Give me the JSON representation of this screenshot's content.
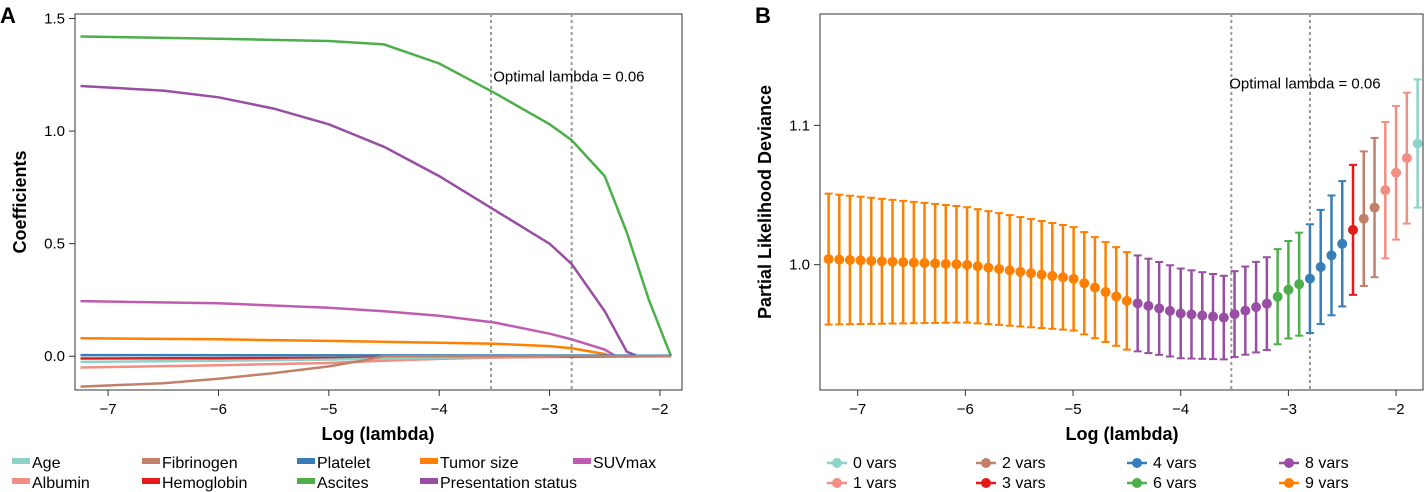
{
  "chart_data": [
    {
      "panel_label": "A",
      "type": "line",
      "title": "",
      "xlabel": "Log (lambda)",
      "ylabel": "Coefficients",
      "xlim": [
        -7.3,
        -1.8
      ],
      "ylim": [
        -0.15,
        1.52
      ],
      "xticks": [
        -7,
        -6,
        -5,
        -4,
        -3,
        -2
      ],
      "xtick_labels": [
        "−7",
        "−6",
        "−5",
        "−4",
        "−3",
        "−2"
      ],
      "yticks": [
        0,
        0.5,
        1,
        1.5
      ],
      "ytick_labels": [
        "0.0",
        "0.5",
        "1.0",
        "1.5"
      ],
      "vlines": [
        -3.53,
        -2.8
      ],
      "annotation": {
        "text": "Optimal lambda = 0.06",
        "x": -3.55,
        "y": 1.22
      },
      "series": [
        {
          "name": "Ascites",
          "color": "#4daf4a",
          "points": [
            [
              -7.25,
              1.42
            ],
            [
              -6,
              1.41
            ],
            [
              -5,
              1.4
            ],
            [
              -4.5,
              1.385
            ],
            [
              -4,
              1.3
            ],
            [
              -3.5,
              1.17
            ],
            [
              -3,
              1.03
            ],
            [
              -2.8,
              0.96
            ],
            [
              -2.5,
              0.8
            ],
            [
              -2.3,
              0.55
            ],
            [
              -2.1,
              0.25
            ],
            [
              -1.9,
              0
            ]
          ]
        },
        {
          "name": "Presentation status",
          "color": "#984ea3",
          "points": [
            [
              -7.25,
              1.2
            ],
            [
              -6.5,
              1.18
            ],
            [
              -6,
              1.15
            ],
            [
              -5.5,
              1.1
            ],
            [
              -5,
              1.03
            ],
            [
              -4.5,
              0.93
            ],
            [
              -4,
              0.8
            ],
            [
              -3.5,
              0.65
            ],
            [
              -3,
              0.5
            ],
            [
              -2.8,
              0.41
            ],
            [
              -2.5,
              0.2
            ],
            [
              -2.3,
              0.02
            ],
            [
              -2.2,
              0
            ],
            [
              -1.9,
              0
            ]
          ]
        },
        {
          "name": "SUVmax",
          "color": "#c05cb0",
          "points": [
            [
              -7.25,
              0.245
            ],
            [
              -6,
              0.235
            ],
            [
              -5,
              0.215
            ],
            [
              -4.5,
              0.2
            ],
            [
              -4,
              0.18
            ],
            [
              -3.5,
              0.15
            ],
            [
              -3,
              0.1
            ],
            [
              -2.8,
              0.075
            ],
            [
              -2.5,
              0.03
            ],
            [
              -2.4,
              0
            ],
            [
              -1.9,
              0
            ]
          ]
        },
        {
          "name": "Tumor size",
          "color": "#ff7f00",
          "points": [
            [
              -7.25,
              0.08
            ],
            [
              -6,
              0.075
            ],
            [
              -5,
              0.068
            ],
            [
              -4,
              0.06
            ],
            [
              -3.5,
              0.055
            ],
            [
              -3,
              0.045
            ],
            [
              -2.8,
              0.035
            ],
            [
              -2.5,
              0.01
            ],
            [
              -2.45,
              0
            ],
            [
              -1.9,
              0
            ]
          ]
        },
        {
          "name": "Platelet",
          "color": "#377eb8",
          "points": [
            [
              -7.25,
              0.005
            ],
            [
              -1.9,
              0.003
            ]
          ]
        },
        {
          "name": "Hemoglobin",
          "color": "#e41a1c",
          "points": [
            [
              -7.25,
              -0.01
            ],
            [
              -5,
              -0.008
            ],
            [
              -4,
              -0.005
            ],
            [
              -3,
              -0.003
            ],
            [
              -1.9,
              0
            ]
          ]
        },
        {
          "name": "Albumin",
          "color": "#f28e82",
          "points": [
            [
              -7.25,
              -0.05
            ],
            [
              -6,
              -0.04
            ],
            [
              -5,
              -0.03
            ],
            [
              -4.5,
              -0.02
            ],
            [
              -4,
              -0.012
            ],
            [
              -3.5,
              -0.006
            ],
            [
              -3,
              -0.002
            ],
            [
              -2.8,
              0
            ],
            [
              -1.9,
              0
            ]
          ]
        },
        {
          "name": "Age",
          "color": "#8dd3c7",
          "points": [
            [
              -7.25,
              -0.025
            ],
            [
              -6,
              -0.02
            ],
            [
              -5,
              -0.015
            ],
            [
              -4.5,
              -0.01
            ],
            [
              -4,
              -0.006
            ],
            [
              -3.5,
              -0.003
            ],
            [
              -3,
              0
            ],
            [
              -1.9,
              0
            ]
          ]
        },
        {
          "name": "Fibrinogen",
          "color": "#c2806a",
          "points": [
            [
              -7.25,
              -0.135
            ],
            [
              -6.5,
              -0.12
            ],
            [
              -6,
              -0.1
            ],
            [
              -5.5,
              -0.075
            ],
            [
              -5,
              -0.045
            ],
            [
              -4.7,
              -0.02
            ],
            [
              -4.5,
              0
            ],
            [
              -1.9,
              0
            ]
          ]
        }
      ],
      "legend": [
        {
          "label": "Age",
          "color": "#8dd3c7"
        },
        {
          "label": "Fibrinogen",
          "color": "#c2806a"
        },
        {
          "label": "Platelet",
          "color": "#377eb8"
        },
        {
          "label": "Tumor size",
          "color": "#ff7f00"
        },
        {
          "label": "SUVmax",
          "color": "#c05cb0"
        },
        {
          "label": "Albumin",
          "color": "#f28e82"
        },
        {
          "label": "Hemoglobin",
          "color": "#e41a1c"
        },
        {
          "label": "Ascites",
          "color": "#4daf4a"
        },
        {
          "label": "Presentation status",
          "color": "#984ea3"
        }
      ]
    },
    {
      "panel_label": "B",
      "type": "scatter",
      "title": "",
      "xlabel": "Log (lambda)",
      "ylabel": "Partial Likelihood Deviance",
      "xlim": [
        -7.35,
        -1.75
      ],
      "ylim": [
        0.91,
        1.18
      ],
      "xticks": [
        -7,
        -6,
        -5,
        -4,
        -3,
        -2
      ],
      "xtick_labels": [
        "−7",
        "−6",
        "−5",
        "−4",
        "−3",
        "−2"
      ],
      "yticks": [
        1.0,
        1.1
      ],
      "ytick_labels": [
        "1.0",
        "1.1"
      ],
      "vlines": [
        -3.53,
        -2.8
      ],
      "annotation": {
        "text": "Optimal lambda = 0.06",
        "x": -2.8,
        "y": 1.13
      },
      "groups": [
        {
          "vars": 9,
          "x_start": -7.27,
          "x_end": -4.5,
          "color": "#ff7f00"
        },
        {
          "vars": 8,
          "x_start": -4.4,
          "x_end": -3.2,
          "color": "#984ea3"
        },
        {
          "vars": 6,
          "x_start": -3.1,
          "x_end": -2.9,
          "color": "#4daf4a"
        },
        {
          "vars": 4,
          "x_start": -2.8,
          "x_end": -2.5,
          "color": "#377eb8"
        },
        {
          "vars": 3,
          "x_start": -2.4,
          "x_end": -2.4,
          "color": "#e41a1c"
        },
        {
          "vars": 2,
          "x_start": -2.3,
          "x_end": -2.2,
          "color": "#c2806a"
        },
        {
          "vars": 1,
          "x_start": -2.1,
          "x_end": -1.9,
          "color": "#f28e82"
        },
        {
          "vars": 0,
          "x_start": -1.8,
          "x_end": -1.8,
          "color": "#8dd3c7"
        }
      ],
      "curve": [
        [
          -7.27,
          1.004
        ],
        [
          -6,
          1.0
        ],
        [
          -5,
          0.99
        ],
        [
          -4.5,
          0.974
        ],
        [
          -4,
          0.965
        ],
        [
          -3.6,
          0.962
        ],
        [
          -3.2,
          0.972
        ],
        [
          -3,
          0.982
        ],
        [
          -2.8,
          0.99
        ],
        [
          -2.5,
          1.015
        ],
        [
          -2.4,
          1.025
        ],
        [
          -2.2,
          1.041
        ],
        [
          -2,
          1.066
        ],
        [
          -1.8,
          1.087
        ]
      ],
      "error_halfwidth": [
        [
          -7.27,
          0.047
        ],
        [
          -4.5,
          0.035
        ],
        [
          -3.6,
          0.03
        ],
        [
          -3,
          0.035
        ],
        [
          -2.5,
          0.045
        ],
        [
          -2.2,
          0.05
        ],
        [
          -1.8,
          0.046
        ]
      ],
      "legend": [
        {
          "label": "0 vars",
          "color": "#8dd3c7"
        },
        {
          "label": "2 vars",
          "color": "#c2806a"
        },
        {
          "label": "4 vars",
          "color": "#377eb8"
        },
        {
          "label": "8 vars",
          "color": "#984ea3"
        },
        {
          "label": "1 vars",
          "color": "#f28e82"
        },
        {
          "label": "3 vars",
          "color": "#e41a1c"
        },
        {
          "label": "6 vars",
          "color": "#4daf4a"
        },
        {
          "label": "9 vars",
          "color": "#ff7f00"
        }
      ]
    }
  ]
}
